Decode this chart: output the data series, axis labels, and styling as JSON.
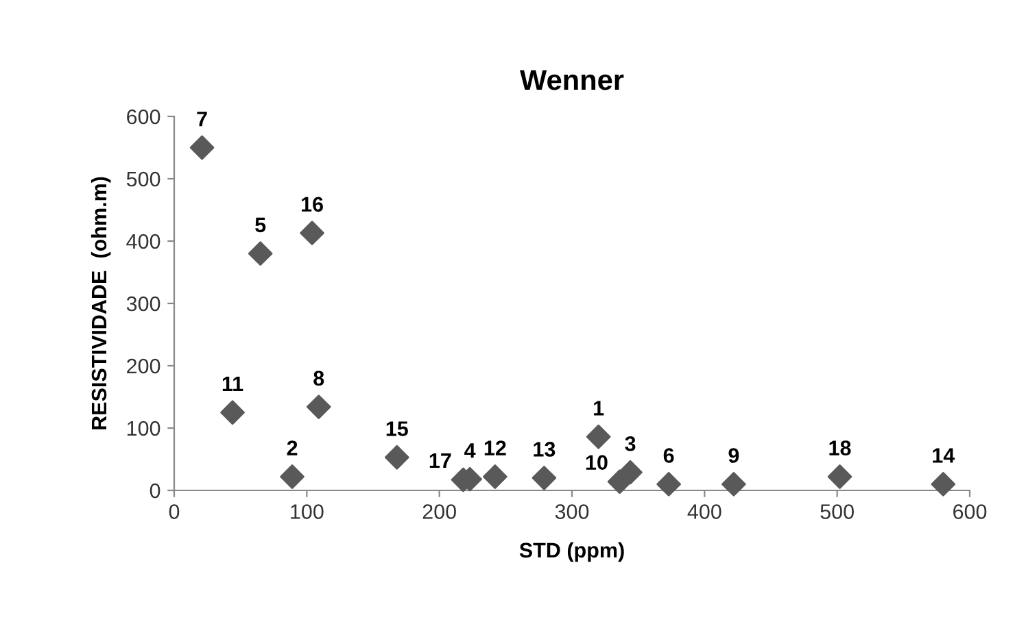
{
  "chart_data": {
    "type": "scatter",
    "title": "Wenner",
    "xlabel": "STD (ppm)",
    "ylabel": "RESISTIVIDADE  (ohm.m)",
    "x": [
      320,
      89,
      344,
      223,
      65,
      373,
      21,
      109,
      422,
      336,
      44,
      242,
      279,
      580,
      168,
      104,
      218,
      502
    ],
    "values": [
      86,
      22,
      29,
      18,
      380,
      10,
      550,
      134,
      10,
      14,
      125,
      22,
      20,
      10,
      53,
      413,
      17,
      22
    ],
    "color": "#595959",
    "marker": "diamond",
    "grid": false,
    "legend": false,
    "xlim": [
      0,
      600
    ],
    "xticks": [
      0,
      100,
      200,
      300,
      400,
      500,
      600
    ],
    "ylim": [
      0,
      600
    ],
    "yticks": [
      0,
      100,
      200,
      300,
      400,
      500,
      600
    ],
    "annotations": [
      {
        "text": "1",
        "x": 320,
        "y": 86
      },
      {
        "text": "2",
        "x": 89,
        "y": 22
      },
      {
        "text": "3",
        "x": 344,
        "y": 29
      },
      {
        "text": "4",
        "x": 223,
        "y": 18
      },
      {
        "text": "5",
        "x": 65,
        "y": 380
      },
      {
        "text": "6",
        "x": 373,
        "y": 10
      },
      {
        "text": "7",
        "x": 21,
        "y": 550
      },
      {
        "text": "8",
        "x": 109,
        "y": 134
      },
      {
        "text": "9",
        "x": 422,
        "y": 10
      },
      {
        "text": "10",
        "x": 336,
        "y": 14
      },
      {
        "text": "11",
        "x": 44,
        "y": 125
      },
      {
        "text": "12",
        "x": 242,
        "y": 22
      },
      {
        "text": "13",
        "x": 279,
        "y": 20
      },
      {
        "text": "14",
        "x": 580,
        "y": 10
      },
      {
        "text": "15",
        "x": 168,
        "y": 53
      },
      {
        "text": "16",
        "x": 104,
        "y": 413
      },
      {
        "text": "17",
        "x": 218,
        "y": 17
      },
      {
        "text": "18",
        "x": 502,
        "y": 22
      }
    ]
  }
}
